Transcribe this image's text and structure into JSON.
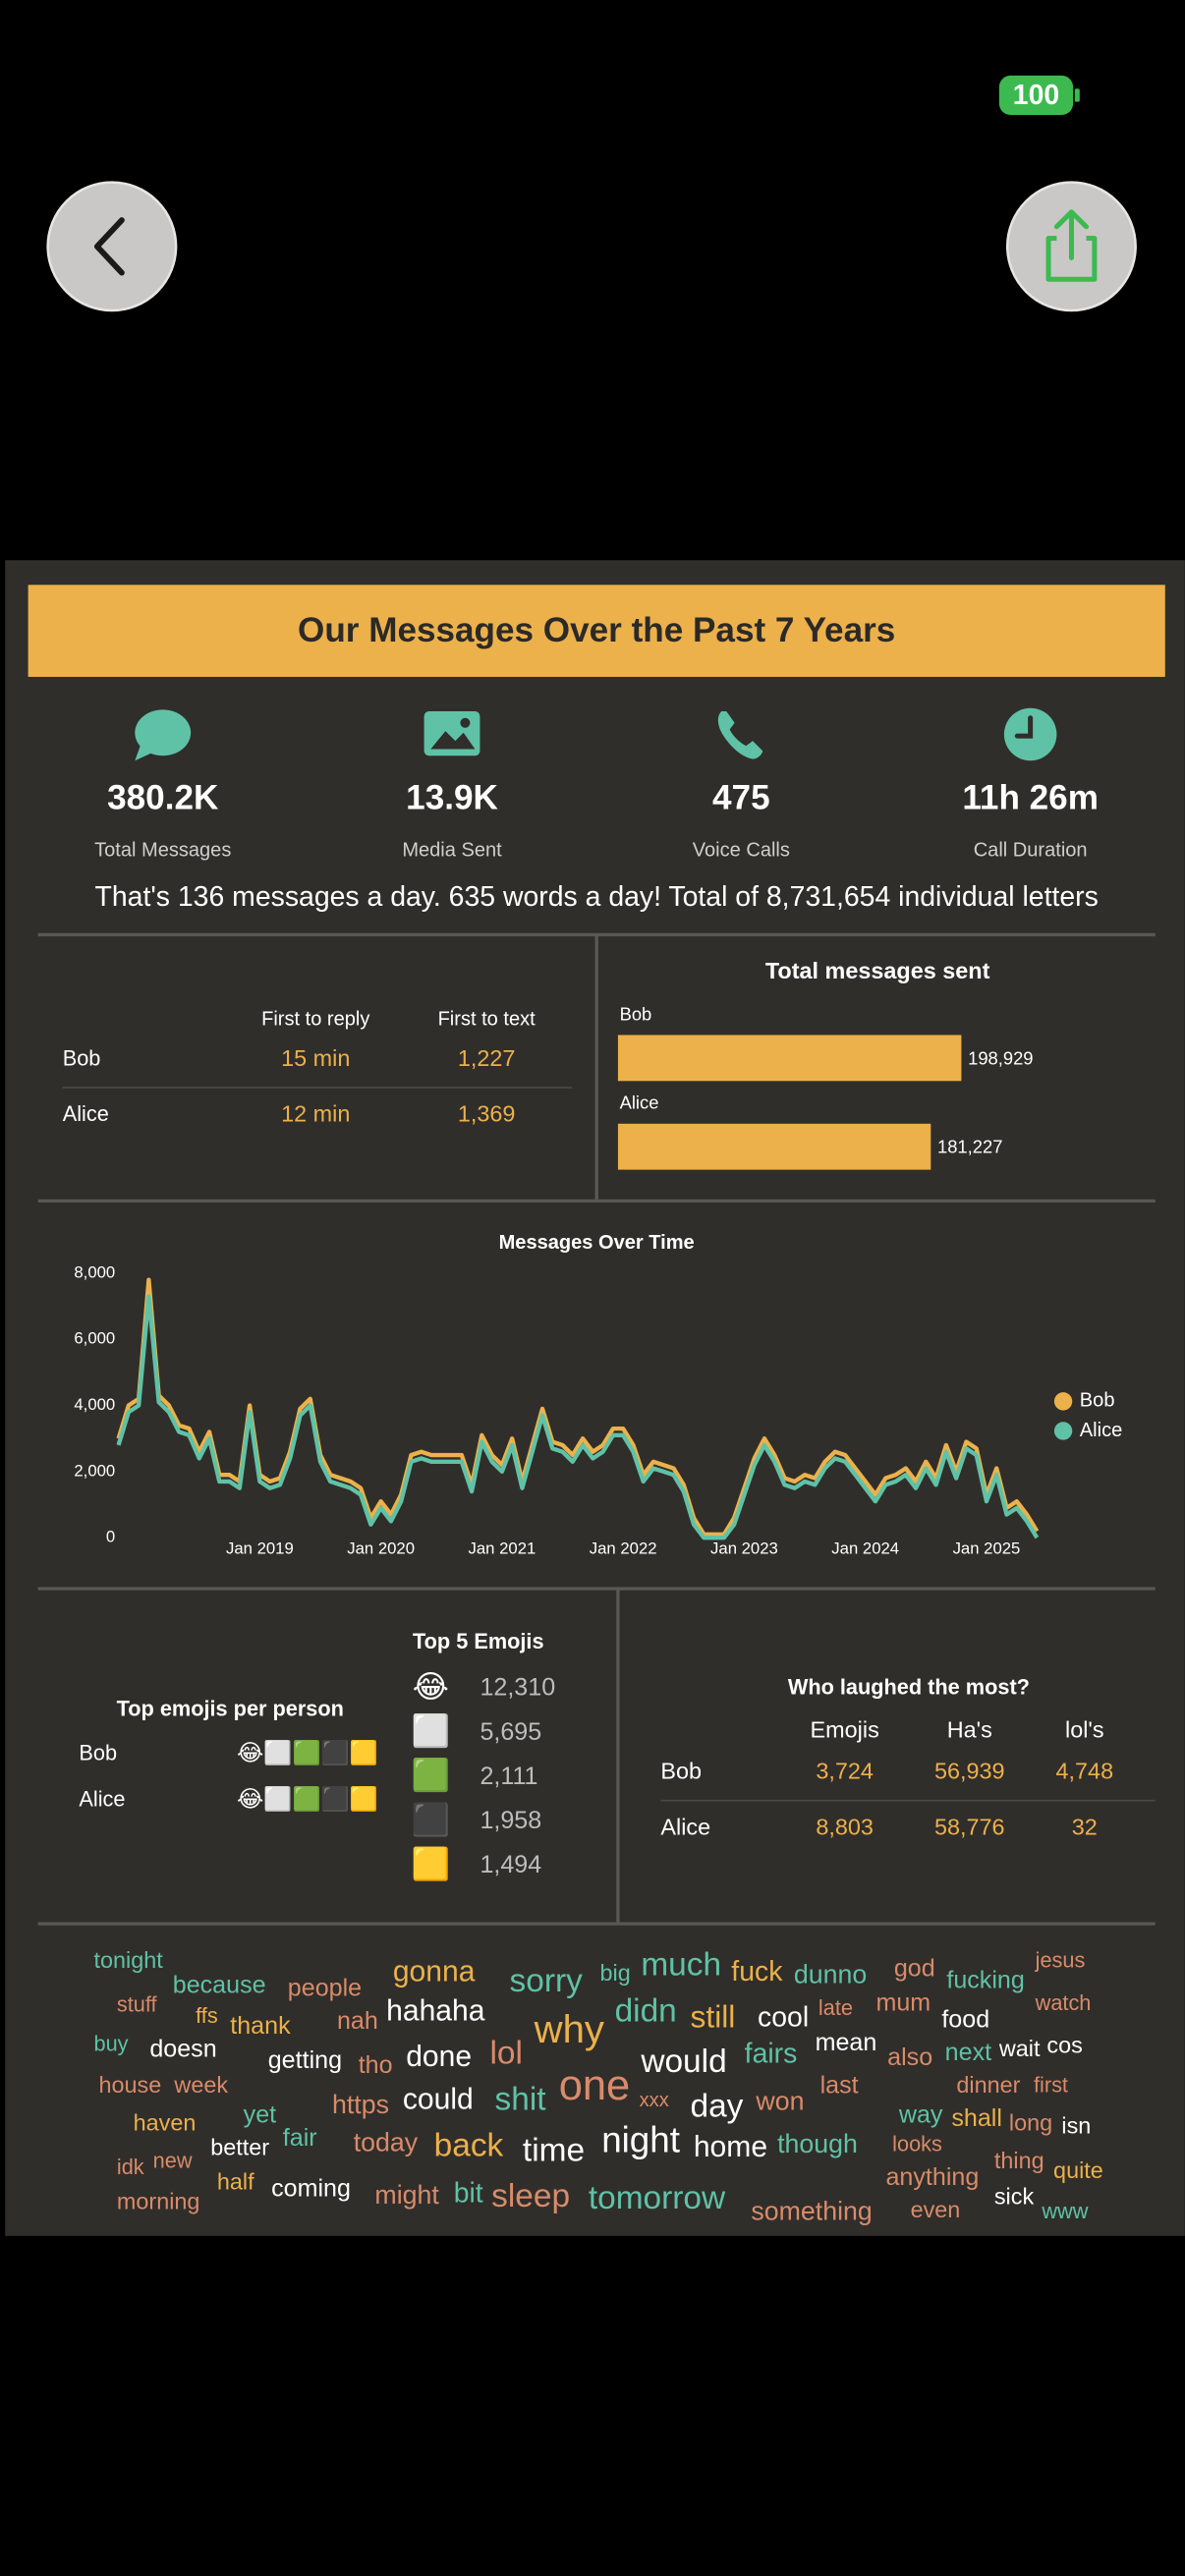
{
  "status_bar": {
    "battery": "100"
  },
  "title": "Our Messages Over the Past 7 Years",
  "stats": [
    {
      "value": "380.2K",
      "label": "Total Messages"
    },
    {
      "value": "13.9K",
      "label": "Media Sent"
    },
    {
      "value": "475",
      "label": "Voice Calls"
    },
    {
      "value": "11h 26m",
      "label": "Call Duration"
    }
  ],
  "summary": "That's 136 messages a day. 635 words a day! Total of 8,731,654 individual letters",
  "response_table": {
    "columns": [
      "First to reply",
      "First to text"
    ],
    "rows": [
      {
        "name": "Bob",
        "cells": [
          "15 min",
          "1,227"
        ]
      },
      {
        "name": "Alice",
        "cells": [
          "12 min",
          "1,369"
        ]
      }
    ]
  },
  "total_messages_sent": {
    "type": "bar",
    "title": "Total messages sent",
    "categories": [
      "Bob",
      "Alice"
    ],
    "values": [
      198929,
      181227
    ],
    "value_labels": [
      "198,929",
      "181,227"
    ],
    "color": "#ecb14a"
  },
  "messages_over_time": {
    "type": "line",
    "title": "Messages Over Time",
    "x": [
      "2017-11",
      "2017-12",
      "2018-01",
      "2018-02",
      "2018-03",
      "2018-04",
      "2018-05",
      "2018-06",
      "2018-07",
      "2018-08",
      "2018-09",
      "2018-10",
      "2018-11",
      "2018-12",
      "2019-01",
      "2019-02",
      "2019-03",
      "2019-04",
      "2019-05",
      "2019-06",
      "2019-07",
      "2019-08",
      "2019-09",
      "2019-10",
      "2019-11",
      "2019-12",
      "2020-01",
      "2020-02",
      "2020-03",
      "2020-04",
      "2020-05",
      "2020-06",
      "2020-07",
      "2020-08",
      "2020-09",
      "2020-10",
      "2020-11",
      "2020-12",
      "2021-01",
      "2021-02",
      "2021-03",
      "2021-04",
      "2021-05",
      "2021-06",
      "2021-07",
      "2021-08",
      "2021-09",
      "2021-10",
      "2021-11",
      "2021-12",
      "2022-01",
      "2022-02",
      "2022-03",
      "2022-04",
      "2022-05",
      "2022-06",
      "2022-07",
      "2022-08",
      "2022-09",
      "2022-10",
      "2022-11",
      "2022-12",
      "2023-01",
      "2023-02",
      "2023-03",
      "2023-04",
      "2023-05",
      "2023-06",
      "2023-07",
      "2023-08",
      "2023-09",
      "2023-10",
      "2023-11",
      "2023-12",
      "2024-01",
      "2024-02",
      "2024-03",
      "2024-04",
      "2024-05",
      "2024-06",
      "2024-07",
      "2024-08",
      "2024-09",
      "2024-10",
      "2024-11",
      "2024-12",
      "2025-01",
      "2025-02",
      "2025-03",
      "2025-04",
      "2025-05",
      "2025-06"
    ],
    "xlim": [
      "2017-11",
      "2025-06"
    ],
    "xticks": [
      {
        "value": "2019-01",
        "label": "Jan 2019"
      },
      {
        "value": "2020-01",
        "label": "Jan 2020"
      },
      {
        "value": "2021-01",
        "label": "Jan 2021"
      },
      {
        "value": "2022-01",
        "label": "Jan 2022"
      },
      {
        "value": "2023-01",
        "label": "Jan 2023"
      },
      {
        "value": "2024-01",
        "label": "Jan 2024"
      },
      {
        "value": "2025-01",
        "label": "Jan 2025"
      }
    ],
    "ylim": [
      0,
      8000
    ],
    "yticks": [
      0,
      {
        "value": 2000,
        "label": "2,000"
      },
      {
        "value": 4000,
        "label": "4,000"
      },
      {
        "value": 6000,
        "label": "6,000"
      },
      {
        "value": 8000,
        "label": "8,000"
      }
    ],
    "grid": false,
    "legend": "right",
    "series": [
      {
        "name": "Bob",
        "color": "#ecb14a",
        "values": [
          3000,
          4000,
          4200,
          7800,
          4300,
          4000,
          3400,
          3300,
          2600,
          3200,
          1900,
          1900,
          1700,
          4000,
          1900,
          1700,
          1800,
          2600,
          3900,
          4200,
          2500,
          1900,
          1800,
          1700,
          1500,
          600,
          1100,
          700,
          1300,
          2500,
          2600,
          2500,
          2500,
          2500,
          2500,
          1600,
          3100,
          2500,
          2200,
          3000,
          1700,
          2800,
          3900,
          2900,
          2800,
          2500,
          3000,
          2600,
          2800,
          3300,
          3300,
          2800,
          1900,
          2300,
          2200,
          2100,
          1600,
          600,
          100,
          100,
          100,
          600,
          1500,
          2400,
          3000,
          2500,
          1800,
          1700,
          1900,
          1800,
          2300,
          2600,
          2500,
          2100,
          1700,
          1300,
          1800,
          1900,
          2100,
          1700,
          2300,
          1800,
          2800,
          2000,
          2900,
          2700,
          1300,
          2100,
          900,
          1100,
          700,
          200
        ]
      },
      {
        "name": "Alice",
        "color": "#5fc2a6",
        "values": [
          2800,
          3800,
          4000,
          7300,
          4100,
          3800,
          3200,
          3100,
          2400,
          3000,
          1700,
          1700,
          1500,
          3800,
          1700,
          1500,
          1600,
          2400,
          3700,
          4000,
          2300,
          1700,
          1600,
          1500,
          1300,
          400,
          900,
          500,
          1100,
          2300,
          2400,
          2300,
          2300,
          2300,
          2300,
          1400,
          2900,
          2300,
          2000,
          2800,
          1500,
          2600,
          3700,
          2700,
          2600,
          2300,
          2800,
          2400,
          2600,
          3100,
          3100,
          2600,
          1700,
          2100,
          2000,
          1900,
          1400,
          400,
          0,
          0,
          0,
          400,
          1300,
          2200,
          2800,
          2300,
          1600,
          1500,
          1700,
          1600,
          2100,
          2400,
          2300,
          1900,
          1500,
          1100,
          1600,
          1700,
          1900,
          1500,
          2100,
          1600,
          2600,
          1800,
          2700,
          2500,
          1100,
          1900,
          700,
          900,
          500,
          0
        ]
      }
    ]
  },
  "top_emojis": {
    "title": "Top 5 Emojis",
    "rows": [
      {
        "emoji": "😂",
        "count": "12,310"
      },
      {
        "emoji": "⬜",
        "count": "5,695"
      },
      {
        "emoji": "🟩",
        "count": "2,111"
      },
      {
        "emoji": "⬛",
        "count": "1,958"
      },
      {
        "emoji": "🟨",
        "count": "1,494"
      }
    ]
  },
  "top_emojis_per_person": {
    "title": "Top emojis per person",
    "rows": [
      {
        "name": "Bob",
        "emojis": "😂⬜🟩⬛🟨"
      },
      {
        "name": "Alice",
        "emojis": "😂⬜🟩⬛🟨"
      }
    ]
  },
  "laughs": {
    "title": "Who laughed the most?",
    "columns": [
      "Emojis",
      "Ha's",
      "lol's"
    ],
    "rows": [
      {
        "name": "Bob",
        "cells": [
          "3,724",
          "56,939",
          "4,748"
        ]
      },
      {
        "name": "Alice",
        "cells": [
          "8,803",
          "58,776",
          "32"
        ]
      }
    ]
  },
  "word_cloud": [
    "tonight",
    "because",
    "people",
    "gonna",
    "sorry",
    "big",
    "much",
    "fuck",
    "dunno",
    "god",
    "fucking",
    "jesus",
    "stuff",
    "ffs",
    "thank",
    "nah",
    "hahaha",
    "why",
    "didn",
    "still",
    "cool",
    "late",
    "mum",
    "food",
    "watch",
    "buy",
    "doesn",
    "getting",
    "tho",
    "done",
    "lol",
    "would",
    "fairs",
    "mean",
    "also",
    "next",
    "wait",
    "cos",
    "house",
    "week",
    "https",
    "could",
    "shit",
    "one",
    "xxx",
    "day",
    "won",
    "last",
    "dinner",
    "first",
    "haven",
    "yet",
    "way",
    "shall",
    "long",
    "isn",
    "fair",
    "better",
    "today",
    "back",
    "time",
    "night",
    "home",
    "though",
    "looks",
    "idk",
    "new",
    "thing",
    "quite",
    "half",
    "anything",
    "morning",
    "coming",
    "might",
    "bit",
    "sleep",
    "tomorrow",
    "sick",
    "something",
    "even",
    "www"
  ]
}
